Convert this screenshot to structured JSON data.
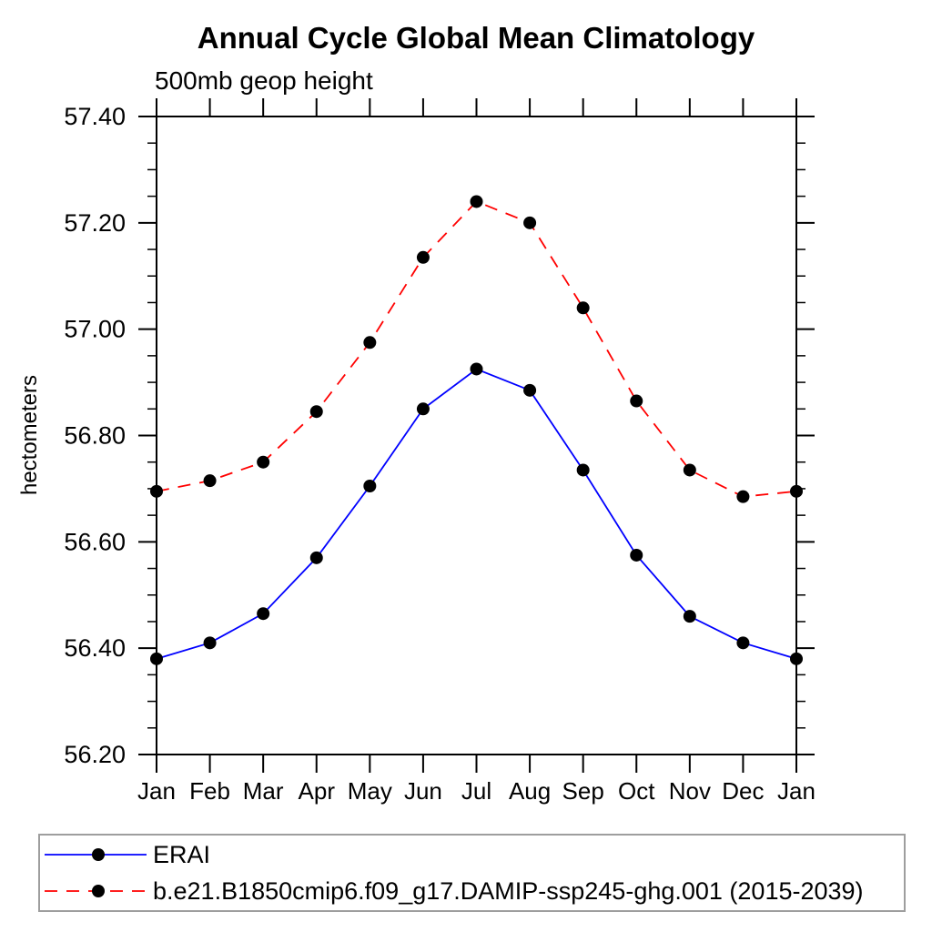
{
  "title": "Annual Cycle Global Mean Climatology",
  "subtitle": "500mb geop height",
  "chart_data": {
    "type": "line",
    "title": "Annual Cycle Global Mean Climatology",
    "subtitle": "500mb geop height",
    "xlabel": "",
    "ylabel": "hectometers",
    "categories": [
      "Jan",
      "Feb",
      "Mar",
      "Apr",
      "May",
      "Jun",
      "Jul",
      "Aug",
      "Sep",
      "Oct",
      "Nov",
      "Dec",
      "Jan"
    ],
    "ylim": [
      56.2,
      57.4
    ],
    "ytick_major_step": 0.2,
    "ytick_minor_step": 0.05,
    "ytick_labels": [
      "57.40",
      "57.20",
      "57.00",
      "56.80",
      "56.60",
      "56.40",
      "56.20"
    ],
    "grid": false,
    "legend_position": "bottom",
    "axis_color": "#000000",
    "legend_border_color": "#9e9e9e",
    "marker_color": "#000000",
    "series": [
      {
        "name": "ERAI",
        "color": "#0000ff",
        "line_style": "solid",
        "marker": "circle",
        "values": [
          56.38,
          56.41,
          56.465,
          56.57,
          56.705,
          56.85,
          56.925,
          56.885,
          56.735,
          56.575,
          56.46,
          56.41,
          56.38
        ]
      },
      {
        "name": "b.e21.B1850cmip6.f09_g17.DAMIP-ssp245-ghg.001 (2015-2039)",
        "color": "#ff0000",
        "line_style": "dashed",
        "marker": "circle",
        "values": [
          56.695,
          56.715,
          56.75,
          56.845,
          56.975,
          57.135,
          57.24,
          57.2,
          57.04,
          56.865,
          56.735,
          56.685,
          56.695
        ]
      }
    ]
  }
}
